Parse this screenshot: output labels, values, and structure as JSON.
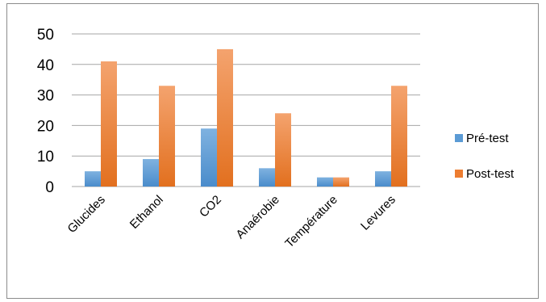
{
  "chart_data": {
    "type": "bar",
    "categories": [
      "Glucides",
      "Ethanol",
      "CO2",
      "Anaérobie",
      "Température",
      "Levures"
    ],
    "series": [
      {
        "name": "Pré-test",
        "values": [
          5,
          9,
          19,
          6,
          3,
          5
        ],
        "color": "#5b9bd5"
      },
      {
        "name": "Post-test",
        "values": [
          41,
          33,
          45,
          24,
          3,
          33
        ],
        "color": "#ed7d31"
      }
    ],
    "y_ticks": [
      "0",
      "10",
      "20",
      "30",
      "40",
      "50"
    ],
    "ylim": [
      0,
      50
    ],
    "grid": true,
    "legend_position": "right"
  }
}
